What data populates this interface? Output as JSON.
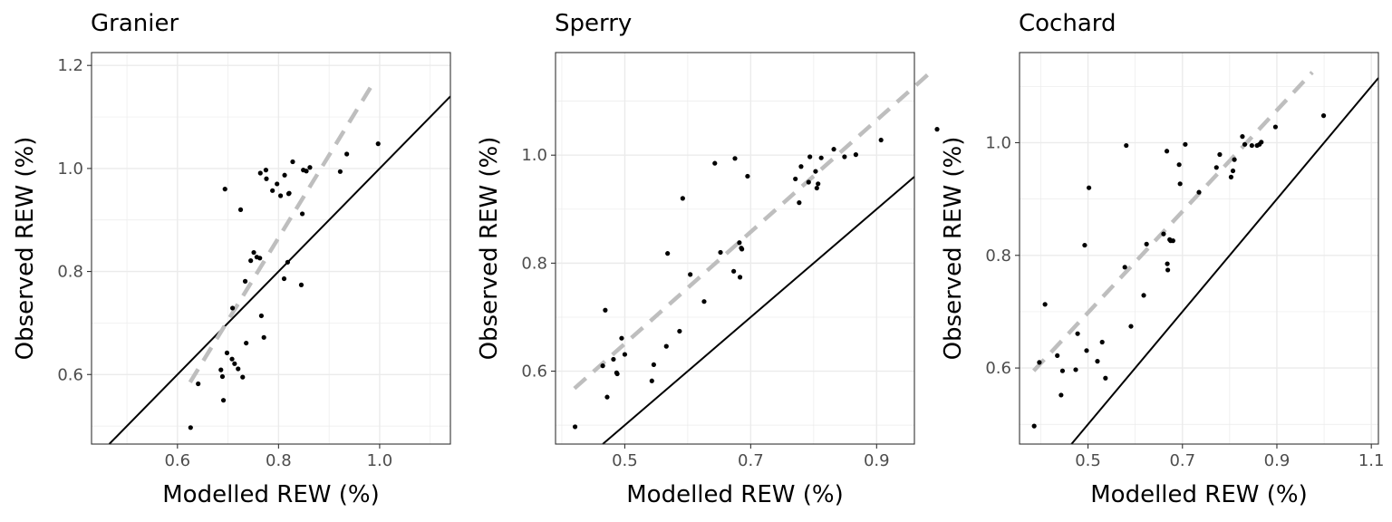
{
  "chart_data": [
    {
      "type": "scatter",
      "title": "Granier",
      "xlabel": "Modelled REW (%)",
      "ylabel": "Observed REW (%)",
      "xlim": [
        0.43,
        1.14
      ],
      "ylim": [
        0.465,
        1.225
      ],
      "xticks": [
        0.6,
        0.8,
        1.0
      ],
      "xtick_labels": [
        "0.6",
        "0.8",
        "1.0"
      ],
      "yticks": [
        0.6,
        0.8,
        1.0,
        1.2
      ],
      "ytick_labels": [
        "0.6",
        "0.8",
        "1.0",
        "1.2"
      ],
      "grid": true,
      "reference_line": "1:1",
      "fit_line": {
        "x": [
          0.625,
          0.99
        ],
        "y": [
          0.585,
          1.17
        ],
        "style": "dashed",
        "color": "#bebebe"
      },
      "points": {
        "x": [
          0.626,
          0.641,
          0.686,
          0.689,
          0.691,
          0.694,
          0.698,
          0.708,
          0.713,
          0.72,
          0.729,
          0.734,
          0.736,
          0.745,
          0.751,
          0.757,
          0.763,
          0.764,
          0.766,
          0.771,
          0.775,
          0.776,
          0.788,
          0.797,
          0.804,
          0.811,
          0.812,
          0.818,
          0.82,
          0.821,
          0.828,
          0.845,
          0.847,
          0.849,
          0.855,
          0.862,
          0.922,
          0.935,
          0.997,
          0.725,
          0.709
        ],
        "y": [
          0.497,
          0.582,
          0.609,
          0.596,
          0.55,
          0.96,
          0.642,
          0.63,
          0.621,
          0.611,
          0.595,
          0.781,
          0.661,
          0.821,
          0.837,
          0.828,
          0.826,
          0.991,
          0.714,
          0.672,
          0.997,
          0.98,
          0.957,
          0.97,
          0.947,
          0.786,
          0.987,
          0.818,
          0.951,
          0.952,
          1.013,
          0.774,
          0.912,
          0.997,
          0.995,
          1.002,
          0.994,
          1.028,
          1.048,
          0.92,
          0.729
        ]
      }
    },
    {
      "type": "scatter",
      "title": "Sperry",
      "xlabel": "Modelled REW (%)",
      "ylabel": "Observed REW (%)",
      "xlim": [
        0.39,
        0.96
      ],
      "ylim": [
        0.465,
        1.19
      ],
      "xticks": [
        0.5,
        0.7,
        0.9
      ],
      "xtick_labels": [
        "0.5",
        "0.7",
        "0.9"
      ],
      "yticks": [
        0.6,
        0.8,
        1.0
      ],
      "ytick_labels": [
        "0.6",
        "0.8",
        "1.0"
      ],
      "grid": true,
      "reference_line": "1:1",
      "fit_line": {
        "x": [
          0.42,
          0.99
        ],
        "y": [
          0.568,
          1.158
        ],
        "style": "dashed",
        "color": "#bebebe"
      },
      "points": {
        "x": [
          0.421,
          0.465,
          0.469,
          0.472,
          0.482,
          0.487,
          0.488,
          0.495,
          0.5,
          0.543,
          0.546,
          0.566,
          0.568,
          0.587,
          0.592,
          0.604,
          0.626,
          0.643,
          0.652,
          0.673,
          0.675,
          0.682,
          0.683,
          0.685,
          0.686,
          0.695,
          0.771,
          0.777,
          0.78,
          0.792,
          0.794,
          0.803,
          0.805,
          0.807,
          0.812,
          0.832,
          0.849,
          0.867,
          0.907,
          0.996
        ],
        "y": [
          0.497,
          0.61,
          0.713,
          0.552,
          0.622,
          0.597,
          0.595,
          0.661,
          0.631,
          0.582,
          0.612,
          0.646,
          0.818,
          0.674,
          0.92,
          0.779,
          0.729,
          0.985,
          0.82,
          0.785,
          0.994,
          0.838,
          0.774,
          0.828,
          0.826,
          0.961,
          0.956,
          0.912,
          0.979,
          0.95,
          0.997,
          0.97,
          0.939,
          0.947,
          0.995,
          1.011,
          0.997,
          1.001,
          1.028,
          1.048
        ]
      }
    },
    {
      "type": "scatter",
      "title": "Cochard",
      "xlabel": "Modelled REW (%)",
      "ylabel": "Observed REW (%)",
      "xlim": [
        0.355,
        1.115
      ],
      "ylim": [
        0.465,
        1.16
      ],
      "xticks": [
        0.5,
        0.7,
        0.9,
        1.1
      ],
      "xtick_labels": [
        "0.5",
        "0.7",
        "0.9",
        "1.1"
      ],
      "yticks": [
        0.6,
        0.8,
        1.0
      ],
      "ytick_labels": [
        "0.6",
        "0.8",
        "1.0"
      ],
      "grid": true,
      "reference_line": "1:1",
      "fit_line": {
        "x": [
          0.385,
          0.975
        ],
        "y": [
          0.595,
          1.125
        ],
        "style": "dashed",
        "color": "#bebebe"
      },
      "points": {
        "x": [
          0.386,
          0.397,
          0.409,
          0.435,
          0.443,
          0.446,
          0.474,
          0.478,
          0.493,
          0.497,
          0.502,
          0.52,
          0.53,
          0.537,
          0.578,
          0.581,
          0.591,
          0.618,
          0.624,
          0.66,
          0.667,
          0.668,
          0.669,
          0.673,
          0.675,
          0.68,
          0.693,
          0.695,
          0.706,
          0.735,
          0.772,
          0.779,
          0.803,
          0.807,
          0.81,
          0.827,
          0.832,
          0.847,
          0.858,
          0.863,
          0.867,
          0.897,
          0.999
        ],
        "y": [
          0.497,
          0.61,
          0.713,
          0.622,
          0.552,
          0.595,
          0.597,
          0.661,
          0.818,
          0.631,
          0.92,
          0.612,
          0.646,
          0.582,
          0.779,
          0.995,
          0.674,
          0.729,
          0.82,
          0.838,
          0.985,
          0.785,
          0.774,
          0.828,
          0.826,
          0.826,
          0.961,
          0.927,
          0.997,
          0.912,
          0.956,
          0.979,
          0.939,
          0.95,
          0.97,
          1.011,
          0.997,
          0.995,
          0.995,
          0.997,
          1.001,
          1.028,
          1.048
        ]
      }
    }
  ]
}
